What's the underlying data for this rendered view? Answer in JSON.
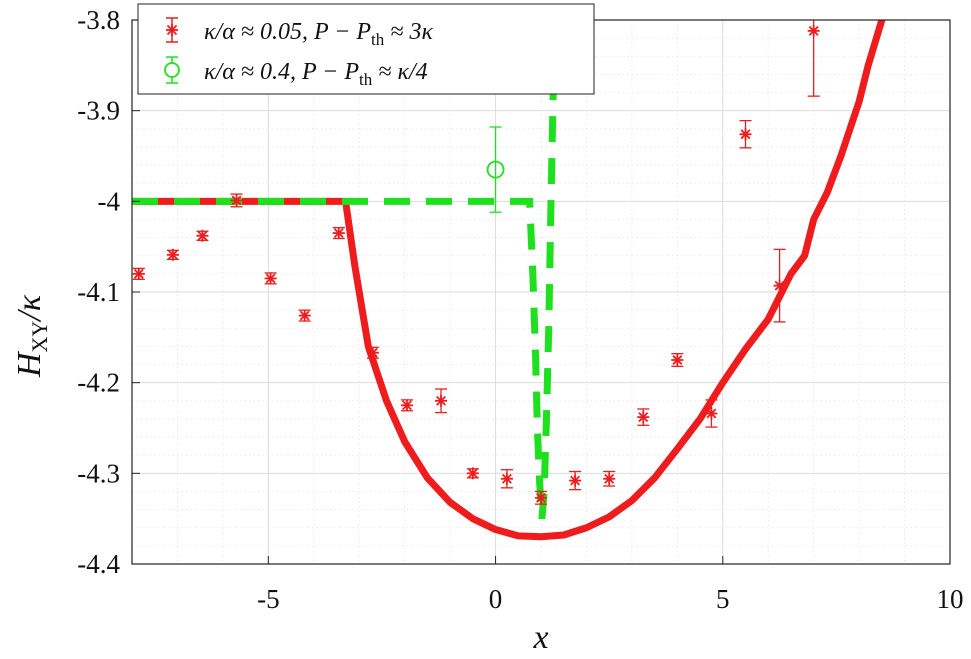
{
  "chart_data": {
    "type": "scatter",
    "title": "",
    "xlabel": "x",
    "ylabel_main": "H",
    "ylabel_sub": "XY",
    "ylabel_tail": "/κ",
    "xlim": [
      -8,
      10
    ],
    "ylim": [
      -4.4,
      -3.8
    ],
    "x_ticks": [
      -5,
      0,
      5,
      10
    ],
    "x_tick_labels": [
      "-5",
      "0",
      "5",
      "10"
    ],
    "y_ticks": [
      -4.4,
      -4.3,
      -4.2,
      -4.1,
      -4.0,
      -3.9,
      -3.8
    ],
    "y_tick_labels": [
      "-4.4",
      "-4.3",
      "-4.2",
      "-4.1",
      "-4",
      "-3.9",
      "-3.8"
    ],
    "grid": true,
    "legend_position": "top-left",
    "colors": {
      "red": "#ee1c1c",
      "green": "#1fe01f"
    },
    "series": [
      {
        "name": "κ/α ≈ 0.05, P − P_th ≈ 3κ",
        "legend_main": "κ/α ≈ 0.05, P − P",
        "legend_sub": "th",
        "legend_tail": " ≈ 3κ",
        "kind": "markers-errorbars",
        "marker": "asterisk",
        "color": "#ee1c1c",
        "points": [
          {
            "x": -7.85,
            "y": -4.08,
            "err": 0.006
          },
          {
            "x": -7.1,
            "y": -4.059,
            "err": 0.005
          },
          {
            "x": -6.45,
            "y": -4.038,
            "err": 0.005
          },
          {
            "x": -5.7,
            "y": -3.999,
            "err": 0.007
          },
          {
            "x": -4.95,
            "y": -4.085,
            "err": 0.006
          },
          {
            "x": -4.2,
            "y": -4.126,
            "err": 0.006
          },
          {
            "x": -3.45,
            "y": -4.035,
            "err": 0.006
          },
          {
            "x": -2.7,
            "y": -4.167,
            "err": 0.006
          },
          {
            "x": -1.95,
            "y": -4.225,
            "err": 0.006
          },
          {
            "x": -1.2,
            "y": -4.22,
            "err": 0.013
          },
          {
            "x": -0.5,
            "y": -4.3,
            "err": 0.005
          },
          {
            "x": 0.25,
            "y": -4.306,
            "err": 0.01
          },
          {
            "x": 1.0,
            "y": -4.327,
            "err": 0.007
          },
          {
            "x": 1.75,
            "y": -4.308,
            "err": 0.01
          },
          {
            "x": 2.5,
            "y": -4.306,
            "err": 0.008
          },
          {
            "x": 3.25,
            "y": -4.238,
            "err": 0.009
          },
          {
            "x": 4.0,
            "y": -4.175,
            "err": 0.007
          },
          {
            "x": 4.75,
            "y": -4.234,
            "err": 0.015
          },
          {
            "x": 5.5,
            "y": -3.926,
            "err": 0.015
          },
          {
            "x": 6.25,
            "y": -4.093,
            "err": 0.04
          },
          {
            "x": 7.0,
            "y": -3.812,
            "err": 0.072
          }
        ],
        "curve": [
          [
            -8,
            -4.0
          ],
          [
            -3.3,
            -4.0
          ],
          [
            -3.1,
            -4.07
          ],
          [
            -2.8,
            -4.16
          ],
          [
            -2.4,
            -4.22
          ],
          [
            -2.0,
            -4.265
          ],
          [
            -1.5,
            -4.305
          ],
          [
            -1.0,
            -4.332
          ],
          [
            -0.5,
            -4.35
          ],
          [
            0.0,
            -4.362
          ],
          [
            0.5,
            -4.369
          ],
          [
            1.0,
            -4.37
          ],
          [
            1.5,
            -4.368
          ],
          [
            2.0,
            -4.36
          ],
          [
            2.5,
            -4.348
          ],
          [
            3.0,
            -4.33
          ],
          [
            3.5,
            -4.305
          ],
          [
            4.0,
            -4.273
          ],
          [
            4.5,
            -4.24
          ],
          [
            5.0,
            -4.2
          ],
          [
            5.5,
            -4.163
          ],
          [
            6.0,
            -4.13
          ],
          [
            6.3,
            -4.1
          ],
          [
            6.5,
            -4.08
          ],
          [
            6.8,
            -4.06
          ],
          [
            7.0,
            -4.02
          ],
          [
            7.3,
            -3.99
          ],
          [
            7.6,
            -3.95
          ],
          [
            8.0,
            -3.89
          ],
          [
            8.2,
            -3.85
          ],
          [
            8.5,
            -3.8
          ]
        ]
      },
      {
        "name": "κ/α ≈ 0.4, P − P_th ≈ κ/4",
        "legend_main": "κ/α ≈ 0.4, P − P",
        "legend_sub": "th",
        "legend_tail": " ≈ κ/4",
        "kind": "marker-errorbar-dashed-curve",
        "marker": "circle",
        "color": "#1fe01f",
        "points": [
          {
            "x": 0.0,
            "y": -3.965,
            "err": 0.047
          }
        ],
        "curve": [
          [
            -8,
            -4.0
          ],
          [
            0.75,
            -4.0
          ],
          [
            0.82,
            -4.08
          ],
          [
            0.88,
            -4.17
          ],
          [
            0.92,
            -4.25
          ],
          [
            0.97,
            -4.31
          ],
          [
            1.02,
            -4.35
          ],
          [
            1.07,
            -4.32
          ],
          [
            1.12,
            -4.24
          ],
          [
            1.17,
            -4.14
          ],
          [
            1.22,
            -4.0
          ],
          [
            1.3,
            -3.8
          ]
        ]
      }
    ]
  }
}
